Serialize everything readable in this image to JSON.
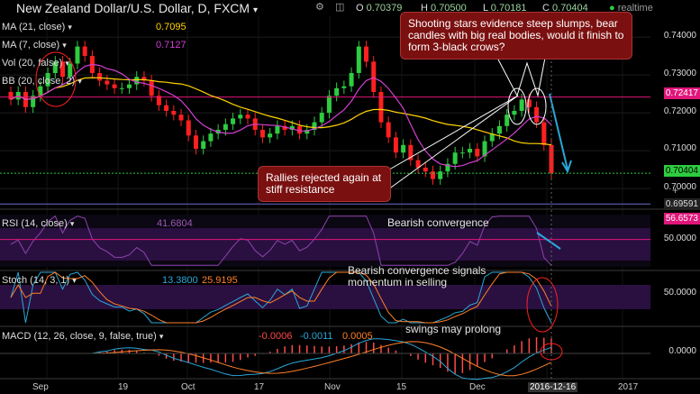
{
  "header": {
    "title": "New Zealand Dollar/U.S. Dollar, D, FXCM",
    "ohlc": [
      {
        "k": "O",
        "v": "0.70379"
      },
      {
        "k": "H",
        "v": "0.70500"
      },
      {
        "k": "L",
        "v": "0.70181"
      },
      {
        "k": "C",
        "v": "0.70404"
      }
    ],
    "realtime": "realtime"
  },
  "indicators": [
    {
      "label": "MA (21, close)",
      "value": "0.7095",
      "color": "#ffd400"
    },
    {
      "label": "MA (7, close)",
      "value": "0.7127",
      "color": "#d23fd2"
    },
    {
      "label": "Vol (20, false)",
      "value": "",
      "color": "#ffffff"
    },
    {
      "label": "BB (20, close, 2)",
      "value": "",
      "color": "#ffffff"
    }
  ],
  "price_axis": {
    "ticks": [
      "0.74000",
      "0.73000",
      "0.72000",
      "0.71000",
      "0.70000"
    ],
    "current": "0.70404",
    "resistance": "0.72417",
    "lower": "0.69591"
  },
  "annotations": {
    "shooting_stars": "Shooting stars evidence steep slumps, bear candles with big real bodies, would it finish to form 3-black crows?",
    "rallies": "Rallies rejected again at stiff resistance",
    "rsi_note": "Bearish convergence",
    "stoch_note": "Bearish convergence signals momentum in selling",
    "macd_note": "swings may prolong"
  },
  "rsi": {
    "label": "RSI (14, close)",
    "value": "41.6804",
    "level": "56.6573",
    "axis_tick": "50.0000"
  },
  "stoch": {
    "label": "Stoch (14, 3, 1)",
    "k": "13.3800",
    "d": "25.9195",
    "axis_tick": "50.0000"
  },
  "macd": {
    "label": "MACD (12, 26, close, 9, false, true)",
    "v1": "-0.0006",
    "v2": "-0.0011",
    "v3": "0.0005",
    "axis_tick": "0.0000"
  },
  "x_axis": {
    "ticks": [
      "Sep",
      "19",
      "Oct",
      "17",
      "Nov",
      "15",
      "Dec",
      "2016-12-16",
      "2017"
    ]
  },
  "colors": {
    "up": "#2ecc40",
    "down": "#ff2020",
    "ma21": "#ffd400",
    "ma7": "#d23fd2",
    "accent": "#2aa7d8"
  },
  "chart_data": {
    "type": "candlestick",
    "title": "New Zealand Dollar/U.S. Dollar, D, FXCM",
    "x_ticks": [
      "Sep",
      "19",
      "Oct",
      "17",
      "Nov",
      "15",
      "Dec",
      "2016-12-16",
      "2017"
    ],
    "y_ticks": [
      0.74,
      0.73,
      0.72,
      0.71,
      0.7
    ],
    "ylim": [
      0.6955,
      0.7455
    ],
    "last": {
      "open": 0.70379,
      "high": 0.705,
      "low": 0.70181,
      "close": 0.70404
    },
    "close_series": [
      0.7235,
      0.7255,
      0.7215,
      0.7245,
      0.727,
      0.7305,
      0.7335,
      0.7295,
      0.733,
      0.7375,
      0.735,
      0.7305,
      0.7285,
      0.7275,
      0.7265,
      0.7265,
      0.7275,
      0.7295,
      0.7285,
      0.7245,
      0.722,
      0.7205,
      0.7195,
      0.718,
      0.714,
      0.7105,
      0.7125,
      0.7145,
      0.7155,
      0.717,
      0.7185,
      0.7195,
      0.7185,
      0.7155,
      0.7135,
      0.7145,
      0.7165,
      0.7155,
      0.7165,
      0.7145,
      0.7155,
      0.7175,
      0.72,
      0.7245,
      0.7265,
      0.727,
      0.7305,
      0.7375,
      0.7335,
      0.7255,
      0.7175,
      0.7135,
      0.7095,
      0.7115,
      0.7075,
      0.7055,
      0.7045,
      0.7025,
      0.7045,
      0.7065,
      0.7095,
      0.7095,
      0.7105,
      0.7085,
      0.7125,
      0.7145,
      0.7165,
      0.7195,
      0.7205,
      0.7235,
      0.7215,
      0.7175,
      0.7115,
      0.704
    ],
    "ma21_last": 0.7095,
    "ma7_last": 0.7127,
    "rsi_last": 41.6804,
    "stoch_last": [
      13.38,
      25.9195
    ],
    "macd_last": [
      -0.0006,
      -0.0011,
      0.0005
    ]
  }
}
